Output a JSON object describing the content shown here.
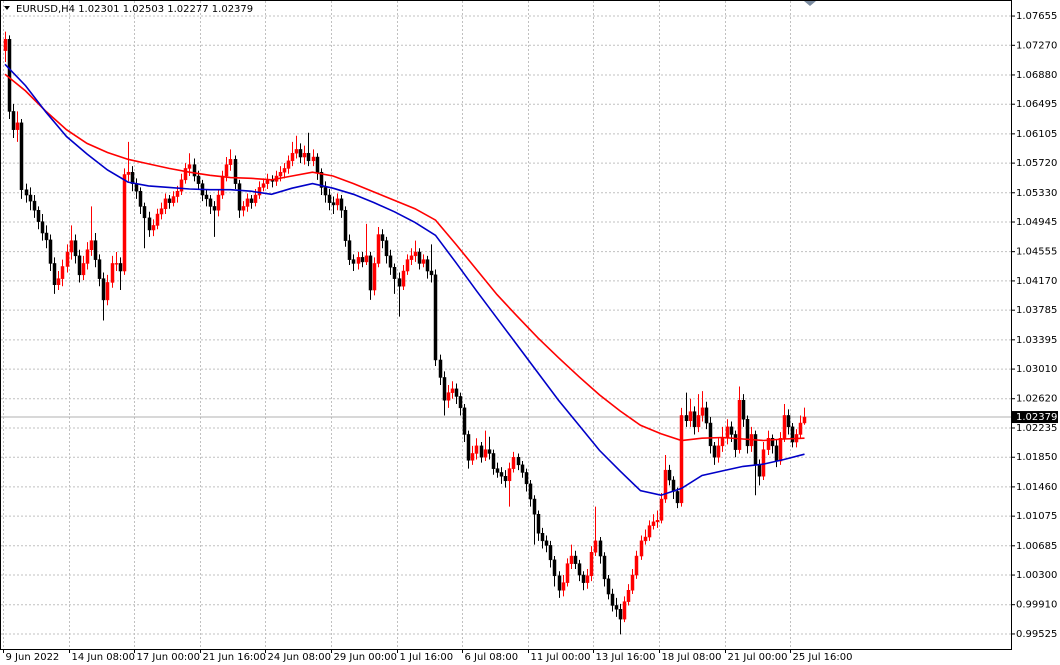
{
  "chart_data": {
    "type": "candlestick",
    "title": "EURUSD,H4  1.02301 1.02503 1.02277 1.02379",
    "categories": [
      "9 Jun 2022",
      null,
      null,
      null,
      null,
      null,
      null,
      null,
      null,
      null,
      null,
      null,
      null,
      null,
      null,
      null,
      "14 Jun 08:00",
      null,
      null,
      null,
      null,
      null,
      null,
      null,
      null,
      null,
      null,
      null,
      null,
      null,
      null,
      null,
      "17 Jun 00:00",
      null,
      null,
      null,
      null,
      null,
      null,
      null,
      null,
      null,
      null,
      null,
      null,
      null,
      null,
      null,
      "21 Jun 16:00",
      null,
      null,
      null,
      null,
      null,
      null,
      null,
      null,
      null,
      null,
      null,
      null,
      null,
      null,
      null,
      "24 Jun 08:00",
      null,
      null,
      null,
      null,
      null,
      null,
      null,
      null,
      null,
      null,
      null,
      null,
      null,
      null,
      null,
      "29 Jun 00:00",
      null,
      null,
      null,
      null,
      null,
      null,
      null,
      null,
      null,
      null,
      null,
      null,
      null,
      null,
      null,
      "1 Jul 16:00",
      null,
      null,
      null,
      null,
      null,
      null,
      null,
      null,
      null,
      null,
      null,
      null,
      null,
      null,
      null,
      "6 Jul 08:00",
      null,
      null,
      null,
      null,
      null,
      null,
      null,
      null,
      null,
      null,
      null,
      null,
      null,
      null,
      null,
      "11 Jul 00:00",
      null,
      null,
      null,
      null,
      null,
      null,
      null,
      null,
      null,
      null,
      null,
      null,
      null,
      null,
      null,
      "13 Jul 16:00",
      null,
      null,
      null,
      null,
      null,
      null,
      null,
      null,
      null,
      null,
      null,
      null,
      null,
      null,
      null,
      "18 Jul 08:00",
      null,
      null,
      null,
      null,
      null,
      null,
      null,
      null,
      null,
      null,
      null,
      null,
      null,
      null,
      null,
      "21 Jul 00:00",
      null,
      null,
      null,
      null,
      null,
      null,
      null,
      null,
      null,
      null,
      null,
      null,
      null,
      null,
      null,
      "25 Jul 16:00",
      null,
      null,
      null
    ],
    "open": [
      1.072,
      1.0735,
      1.064,
      1.0616,
      1.0625,
      1.0537,
      1.053,
      1.0522,
      1.051,
      1.0495,
      1.048,
      1.0471,
      1.044,
      1.0412,
      1.042,
      1.0436,
      1.0455,
      1.047,
      1.045,
      1.0425,
      1.044,
      1.0458,
      1.047,
      1.0445,
      1.042,
      1.0392,
      1.0415,
      1.044,
      1.044,
      1.043,
      1.0557,
      1.056,
      1.0545,
      1.0535,
      1.0515,
      1.05,
      1.0484,
      1.049,
      1.0505,
      1.0512,
      1.0525,
      1.052,
      1.0528,
      1.0535,
      1.055,
      1.0565,
      1.057,
      1.0555,
      1.0545,
      1.053,
      1.0525,
      1.0515,
      1.051,
      1.053,
      1.0555,
      1.057,
      1.0577,
      1.0545,
      1.051,
      1.0515,
      1.0525,
      1.052,
      1.053,
      1.054,
      1.0545,
      1.055,
      1.0548,
      1.0555,
      1.056,
      1.0565,
      1.0575,
      1.0585,
      1.059,
      1.058,
      1.0585,
      1.0575,
      1.058,
      1.056,
      1.054,
      1.053,
      1.052,
      1.0517,
      1.0525,
      1.051,
      1.047,
      1.0445,
      1.044,
      1.0448,
      1.0442,
      1.045,
      1.0405,
      1.044,
      1.0478,
      1.047,
      1.045,
      1.0435,
      1.042,
      1.041,
      1.043,
      1.0445,
      1.045,
      1.0455,
      1.044,
      1.0445,
      1.043,
      1.0425,
      1.0313,
      1.029,
      1.026,
      1.027,
      1.0275,
      1.0265,
      1.025,
      1.0215,
      1.0181,
      1.019,
      1.02,
      1.0185,
      1.0195,
      1.019,
      1.017,
      1.0165,
      1.016,
      1.0154,
      1.017,
      1.0185,
      1.0175,
      1.0165,
      1.015,
      1.013,
      1.011,
      1.0085,
      1.0075,
      1.0069,
      1.005,
      1.0029,
      1.001,
      1.002,
      1.0045,
      1.0055,
      1.0045,
      1.003,
      1.002,
      1.0029,
      1.006,
      1.0075,
      1.0055,
      1.0025,
      1.0005,
      0.999,
      0.9985,
      0.9972,
      0.9995,
      1.001,
      1.003,
      1.0055,
      1.0075,
      1.008,
      1.0095,
      1.01,
      1.0102,
      1.013,
      1.0168,
      1.0155,
      1.014,
      1.0125,
      1.024,
      1.0233,
      1.0245,
      1.0225,
      1.024,
      1.025,
      1.023,
      1.02,
      1.0185,
      1.02,
      1.021,
      1.0225,
      1.0215,
      1.0195,
      1.026,
      1.0235,
      1.02,
      1.0215,
      1.0175,
      1.016,
      1.0195,
      1.021,
      1.02,
      1.018,
      1.021,
      1.024,
      1.0225,
      1.0205,
      1.0215,
      1.02301
    ],
    "high": [
      1.0745,
      1.074,
      1.065,
      1.064,
      1.063,
      1.0545,
      1.054,
      1.053,
      1.0515,
      1.0505,
      1.049,
      1.0478,
      1.0448,
      1.043,
      1.0445,
      1.0465,
      1.049,
      1.0478,
      1.0458,
      1.045,
      1.0468,
      1.0515,
      1.048,
      1.0452,
      1.0428,
      1.0425,
      1.045,
      1.0455,
      1.0448,
      1.0565,
      1.06,
      1.0568,
      1.0552,
      1.054,
      1.052,
      1.0508,
      1.0498,
      1.0512,
      1.052,
      1.0532,
      1.053,
      1.0535,
      1.0542,
      1.0558,
      1.0572,
      1.0585,
      1.0578,
      1.0562,
      1.055,
      1.0538,
      1.053,
      1.0522,
      1.0538,
      1.0562,
      1.058,
      1.059,
      1.0582,
      1.055,
      1.0522,
      1.0532,
      1.053,
      1.0538,
      1.0548,
      1.0552,
      1.0558,
      1.0556,
      1.0562,
      1.0568,
      1.0572,
      1.0582,
      1.06,
      1.0608,
      1.0598,
      1.0595,
      1.0612,
      1.059,
      1.0585,
      1.0565,
      1.0548,
      1.0538,
      1.0528,
      1.0532,
      1.053,
      1.0515,
      1.0478,
      1.0452,
      1.0455,
      1.0455,
      1.0492,
      1.0455,
      1.0448,
      1.0488,
      1.0485,
      1.0475,
      1.0458,
      1.044,
      1.0428,
      1.0438,
      1.0452,
      1.046,
      1.047,
      1.046,
      1.0452,
      1.045,
      1.0465,
      1.0432,
      1.032,
      1.0298,
      1.028,
      1.0285,
      1.0282,
      1.027,
      1.0255,
      1.022,
      1.02,
      1.021,
      1.0205,
      1.022,
      1.0212,
      1.0195,
      1.0178,
      1.0172,
      1.0168,
      1.0178,
      1.0192,
      1.019,
      1.018,
      1.017,
      1.0155,
      1.0135,
      1.0115,
      1.0092,
      1.0082,
      1.0075,
      1.0055,
      1.0035,
      1.003,
      1.0052,
      1.007,
      1.0062,
      1.005,
      1.0035,
      1.0038,
      1.0068,
      1.012,
      1.008,
      1.006,
      1.003,
      1.0012,
      1.0,
      0.9992,
      1.0002,
      1.0018,
      1.0038,
      1.0062,
      1.0082,
      1.009,
      1.0102,
      1.011,
      1.0115,
      1.0138,
      1.0188,
      1.0175,
      1.016,
      1.0145,
      1.025,
      1.027,
      1.0262,
      1.0252,
      1.0268,
      1.0272,
      1.0258,
      1.0238,
      1.0205,
      1.021,
      1.0225,
      1.0235,
      1.0232,
      1.022,
      1.0278,
      1.0268,
      1.024,
      1.0225,
      1.022,
      1.0182,
      1.0205,
      1.022,
      1.0215,
      1.0208,
      1.0218,
      1.0255,
      1.0248,
      1.023,
      1.0222,
      1.024,
      1.02503
    ],
    "low": [
      1.0705,
      1.063,
      1.0605,
      1.06,
      1.0525,
      1.052,
      1.051,
      1.05,
      1.0485,
      1.047,
      1.046,
      1.043,
      1.04,
      1.0405,
      1.041,
      1.0428,
      1.0445,
      1.044,
      1.0415,
      1.0418,
      1.0432,
      1.045,
      1.0435,
      1.041,
      1.0365,
      1.0385,
      1.0408,
      1.043,
      1.0405,
      1.0425,
      1.0548,
      1.0535,
      1.0525,
      1.0505,
      1.046,
      1.0475,
      1.0476,
      1.0485,
      1.0498,
      1.0505,
      1.0512,
      1.0515,
      1.052,
      1.053,
      1.0545,
      1.0555,
      1.0548,
      1.0538,
      1.0522,
      1.0515,
      1.0505,
      1.0475,
      1.0502,
      1.0525,
      1.0548,
      1.0562,
      1.0538,
      1.05,
      1.0502,
      1.0508,
      1.0512,
      1.0515,
      1.0525,
      1.0535,
      1.0538,
      1.054,
      1.0542,
      1.0548,
      1.0552,
      1.0558,
      1.0568,
      1.0578,
      1.0572,
      1.057,
      1.0568,
      1.0568,
      1.055,
      1.053,
      1.052,
      1.051,
      1.0505,
      1.051,
      1.05,
      1.0462,
      1.0438,
      1.043,
      1.0432,
      1.0435,
      1.0438,
      1.0392,
      1.0398,
      1.0435,
      1.046,
      1.044,
      1.0425,
      1.04,
      1.037,
      1.0405,
      1.0425,
      1.0438,
      1.0442,
      1.0432,
      1.0435,
      1.042,
      1.0415,
      1.0305,
      1.028,
      1.024,
      1.025,
      1.0262,
      1.0255,
      1.024,
      1.0205,
      1.017,
      1.0175,
      1.0182,
      1.0178,
      1.018,
      1.0182,
      1.0162,
      1.0158,
      1.015,
      1.0145,
      1.012,
      1.0165,
      1.0168,
      1.0158,
      1.014,
      1.012,
      1.007,
      1.0075,
      1.0065,
      1.006,
      1.004,
      1.0015,
      1.0,
      1.0002,
      1.0015,
      1.0038,
      1.0038,
      1.0022,
      1.001,
      1.0012,
      1.0022,
      1.0055,
      1.0045,
      1.0015,
      0.9998,
      0.9982,
      0.9975,
      0.9952,
      0.9968,
      0.999,
      1.0005,
      1.0025,
      1.005,
      1.007,
      1.0075,
      1.009,
      1.0092,
      1.0098,
      1.0125,
      1.0148,
      1.013,
      1.0118,
      1.012,
      1.0225,
      1.0225,
      1.0215,
      1.0218,
      1.0232,
      1.0222,
      1.019,
      1.0175,
      1.0178,
      1.0192,
      1.0202,
      1.0205,
      1.0185,
      1.019,
      1.0225,
      1.019,
      1.0192,
      1.0135,
      1.0148,
      1.0155,
      1.0188,
      1.019,
      1.0172,
      1.0175,
      1.0205,
      1.0215,
      1.0198,
      1.0198,
      1.021,
      1.02277
    ],
    "close": [
      1.0735,
      1.064,
      1.0616,
      1.0625,
      1.0537,
      1.053,
      1.0522,
      1.051,
      1.0495,
      1.048,
      1.0471,
      1.044,
      1.0412,
      1.042,
      1.0436,
      1.0455,
      1.047,
      1.045,
      1.0425,
      1.044,
      1.0458,
      1.047,
      1.0445,
      1.042,
      1.0392,
      1.0415,
      1.044,
      1.044,
      1.043,
      1.0557,
      1.056,
      1.0545,
      1.0535,
      1.0515,
      1.05,
      1.0484,
      1.049,
      1.0505,
      1.0512,
      1.0525,
      1.052,
      1.0528,
      1.0535,
      1.055,
      1.0565,
      1.057,
      1.0555,
      1.0545,
      1.053,
      1.0525,
      1.0515,
      1.051,
      1.053,
      1.0555,
      1.057,
      1.0577,
      1.0545,
      1.051,
      1.0515,
      1.0525,
      1.052,
      1.053,
      1.054,
      1.0545,
      1.055,
      1.0548,
      1.0555,
      1.056,
      1.0565,
      1.0575,
      1.0585,
      1.059,
      1.058,
      1.0585,
      1.0575,
      1.058,
      1.056,
      1.054,
      1.053,
      1.052,
      1.0517,
      1.0525,
      1.051,
      1.047,
      1.0445,
      1.044,
      1.0448,
      1.0442,
      1.045,
      1.0405,
      1.044,
      1.0478,
      1.047,
      1.045,
      1.0435,
      1.042,
      1.041,
      1.043,
      1.0445,
      1.045,
      1.0455,
      1.044,
      1.0445,
      1.043,
      1.0425,
      1.0313,
      1.029,
      1.026,
      1.027,
      1.0275,
      1.0265,
      1.025,
      1.0215,
      1.0181,
      1.019,
      1.02,
      1.0185,
      1.0195,
      1.019,
      1.017,
      1.0165,
      1.016,
      1.0154,
      1.017,
      1.0185,
      1.0175,
      1.0165,
      1.015,
      1.013,
      1.011,
      1.0085,
      1.0075,
      1.0069,
      1.005,
      1.0029,
      1.001,
      1.002,
      1.0045,
      1.0055,
      1.0045,
      1.003,
      1.002,
      1.0029,
      1.006,
      1.0075,
      1.0055,
      1.0025,
      1.0005,
      0.999,
      0.9985,
      0.9972,
      0.9995,
      1.001,
      1.003,
      1.0055,
      1.0075,
      1.008,
      1.0095,
      1.01,
      1.0102,
      1.013,
      1.0168,
      1.0155,
      1.014,
      1.0125,
      1.024,
      1.0233,
      1.0245,
      1.0225,
      1.024,
      1.025,
      1.023,
      1.02,
      1.0185,
      1.02,
      1.021,
      1.0225,
      1.0215,
      1.0195,
      1.026,
      1.0235,
      1.02,
      1.0215,
      1.0175,
      1.016,
      1.0195,
      1.021,
      1.02,
      1.018,
      1.021,
      1.024,
      1.0225,
      1.0205,
      1.0215,
      1.023,
      1.02379
    ],
    "up_color": "#ff0000",
    "down_color": "#000000",
    "lines": [
      {
        "color": "#ff0000",
        "x": [
          0,
          5,
          10,
          15,
          20,
          25,
          30,
          35,
          40,
          45,
          50,
          55,
          60,
          65,
          70,
          75,
          80,
          85,
          90,
          95,
          100,
          105,
          110,
          115,
          120,
          125,
          130,
          135,
          140,
          145,
          150,
          155,
          160,
          165,
          170,
          175,
          180,
          185,
          190,
          195
        ],
        "values": [
          1.0689,
          1.0667,
          1.064,
          1.0616,
          1.0598,
          1.0586,
          1.0577,
          1.0571,
          1.0565,
          1.056,
          1.0556,
          1.0553,
          1.0552,
          1.055,
          1.0555,
          1.056,
          1.0555,
          1.0545,
          1.0534,
          1.0523,
          1.0512,
          1.0497,
          1.0465,
          1.0432,
          1.0399,
          1.037,
          1.0342,
          1.0316,
          1.0291,
          1.0267,
          1.0246,
          1.0227,
          1.0216,
          1.0207,
          1.021,
          1.0211,
          1.0209,
          1.0207,
          1.0209,
          1.021
        ]
      },
      {
        "color": "#0000c8",
        "x": [
          0,
          5,
          10,
          15,
          20,
          25,
          30,
          35,
          40,
          45,
          50,
          55,
          60,
          65,
          70,
          75,
          80,
          85,
          90,
          95,
          100,
          105,
          110,
          115,
          120,
          125,
          130,
          135,
          140,
          145,
          150,
          155,
          160,
          165,
          170,
          175,
          180,
          185,
          190,
          195
        ],
        "values": [
          1.0702,
          1.0674,
          1.0639,
          1.0607,
          1.0584,
          1.0563,
          1.0547,
          1.0542,
          1.054,
          1.0538,
          1.0537,
          1.0537,
          1.0535,
          1.0531,
          1.0539,
          1.0545,
          1.0539,
          1.0531,
          1.052,
          1.0508,
          1.0494,
          1.0477,
          1.0441,
          1.0404,
          1.0368,
          1.0332,
          1.0296,
          1.026,
          1.0227,
          1.0194,
          1.0167,
          1.0141,
          1.0135,
          1.0144,
          1.0161,
          1.0167,
          1.0173,
          1.0176,
          1.0182,
          1.0189
        ]
      }
    ],
    "current_price": 1.02379,
    "ylim": [
      0.99327,
      1.07853
    ],
    "yticks": [
      1.07655,
      {
        "value": 1.0727,
        "label": "1.07270"
      },
      {
        "value": 1.0688,
        "label": "1.06880"
      },
      1.06495,
      1.06105,
      {
        "value": 1.0572,
        "label": "1.05720"
      },
      {
        "value": 1.0533,
        "label": "1.05330"
      },
      1.04945,
      1.04555,
      {
        "value": 1.0417,
        "label": "1.04170"
      },
      1.03785,
      1.03395,
      {
        "value": 1.0301,
        "label": "1.03010"
      },
      {
        "value": 1.0262,
        "label": "1.02620"
      },
      1.02235,
      {
        "value": 1.0185,
        "label": "1.01850"
      },
      {
        "value": 1.0146,
        "label": "1.01460"
      },
      1.01075,
      1.00685,
      {
        "value": 1.003,
        "label": "1.00300"
      },
      {
        "value": 0.9991,
        "label": "0.99910"
      },
      0.99525
    ],
    "grid": true
  }
}
